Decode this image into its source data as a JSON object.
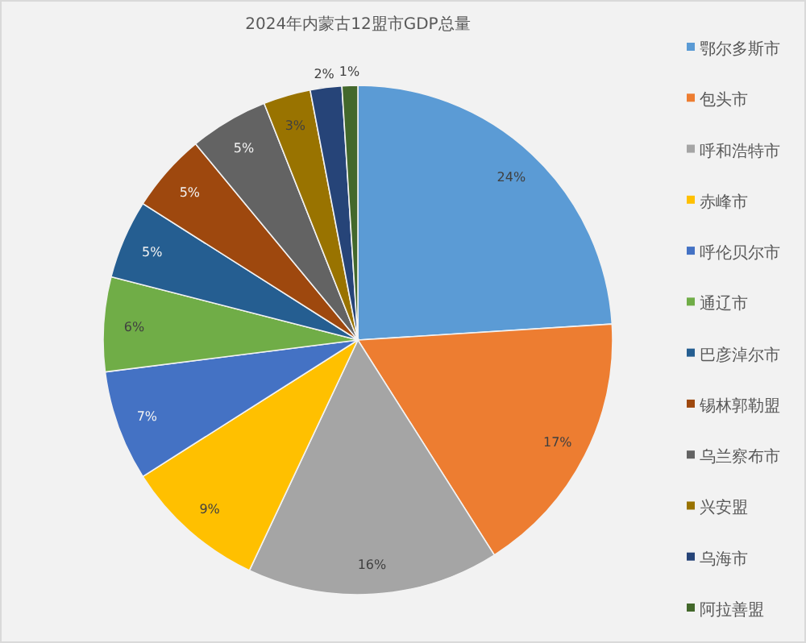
{
  "chart_data": {
    "type": "pie",
    "title": "2024年内蒙古12盟市GDP总量",
    "categories": [
      "鄂尔多斯市",
      "包头市",
      "呼和浩特市",
      "赤峰市",
      "呼伦贝尔市",
      "通辽市",
      "巴彦淖尔市",
      "锡林郭勒盟",
      "乌兰察布市",
      "兴安盟",
      "乌海市",
      "阿拉善盟"
    ],
    "values": [
      24,
      17,
      16,
      9,
      7,
      6,
      5,
      5,
      5,
      3,
      2,
      1
    ],
    "colors": [
      "#5b9bd5",
      "#ed7d31",
      "#a5a5a5",
      "#ffc000",
      "#4472c4",
      "#70ad47",
      "#255e91",
      "#9e480e",
      "#636363",
      "#997300",
      "#264478",
      "#43682b"
    ],
    "value_labels": [
      "24%",
      "17%",
      "16%",
      "9%",
      "7%",
      "6%",
      "5%",
      "5%",
      "5%",
      "3%",
      "2%",
      "1%"
    ],
    "legend": "right"
  }
}
